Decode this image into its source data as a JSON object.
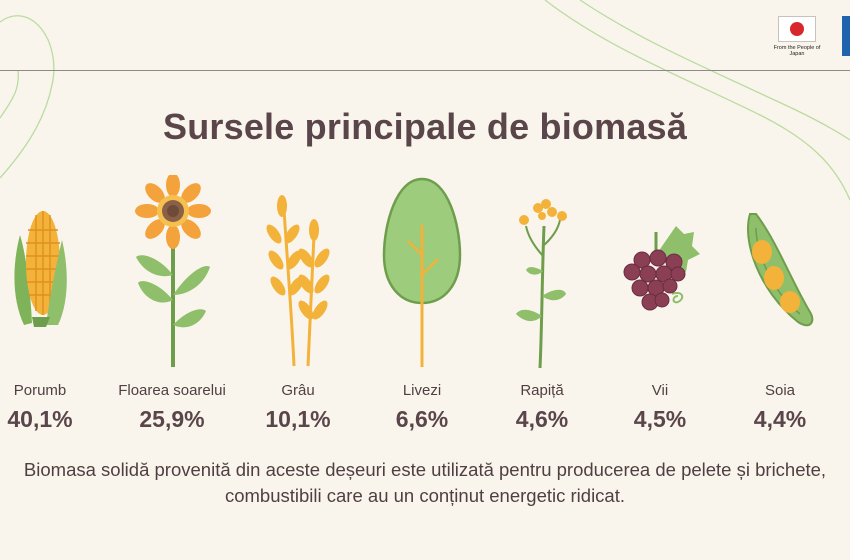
{
  "title": "Sursele principale de biomasă",
  "logo": {
    "caption": "From the People of Japan"
  },
  "chart_data": {
    "type": "table",
    "title": "Sursele principale de biomasă",
    "unit": "%",
    "categories": [
      "Porumb",
      "Floarea soarelui",
      "Grâu",
      "Livezi",
      "Rapiță",
      "Vii",
      "Soia"
    ],
    "values": [
      40.1,
      25.9,
      10.1,
      6.6,
      4.6,
      4.5,
      4.4
    ],
    "value_labels": [
      "40,1%",
      "25,9%",
      "10,1%",
      "6,6%",
      "4,6%",
      "4,5%",
      "4,4%"
    ],
    "icons": [
      "corn-icon",
      "sunflower-icon",
      "wheat-icon",
      "tree-icon",
      "rapeseed-icon",
      "grapes-icon",
      "soybean-icon"
    ]
  },
  "footnote": "Biomasa solidă provenită din aceste deșeuri este utilizată pentru producerea de pelete și brichete, combustibili care au un conținut energetic ridicat.",
  "colors": {
    "background": "#faf5ec",
    "text": "#5a464a",
    "leaf_green": "#8fbf6a",
    "stem_green": "#6e9e4c",
    "tree_green": "#9ccc7c",
    "corn_yellow": "#f3b23a",
    "petal_orange": "#f3a23c",
    "grape_purple": "#8b3f55",
    "deco_line": "#b9dca0"
  }
}
